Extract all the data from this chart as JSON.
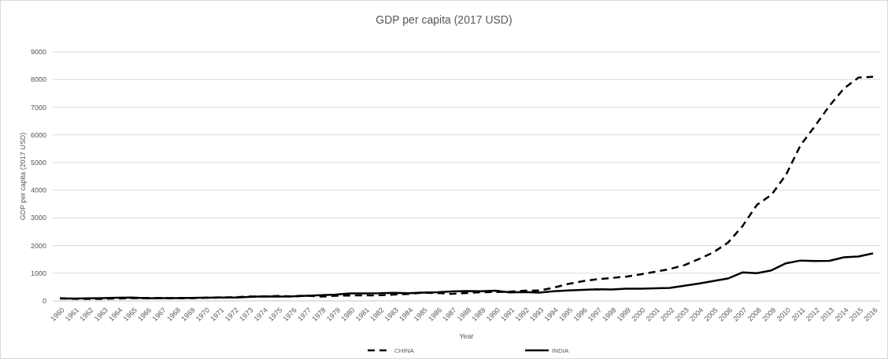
{
  "chart_data": {
    "type": "line",
    "title": "GDP per capita (2017 USD)",
    "xlabel": "Year",
    "ylabel": "GDP per capita (2017 USD)",
    "categories": [
      "1960",
      "1961",
      "1962",
      "1963",
      "1964",
      "1965",
      "1966",
      "1967",
      "1968",
      "1969",
      "1970",
      "1971",
      "1972",
      "1973",
      "1974",
      "1975",
      "1976",
      "1977",
      "1978",
      "1979",
      "1980",
      "1981",
      "1982",
      "1983",
      "1984",
      "1985",
      "1986",
      "1987",
      "1988",
      "1989",
      "1990",
      "1991",
      "1992",
      "1993",
      "1994",
      "1995",
      "1996",
      "1997",
      "1998",
      "1999",
      "2000",
      "2001",
      "2002",
      "2003",
      "2004",
      "2005",
      "2006",
      "2007",
      "2008",
      "2009",
      "2010",
      "2011",
      "2012",
      "2013",
      "2014",
      "2015",
      "2016"
    ],
    "series": [
      {
        "name": "CHINA",
        "color": "#000000",
        "line_style": "dashed",
        "values": [
          90,
          76,
          70,
          74,
          85,
          98,
          104,
          96,
          91,
          100,
          113,
          119,
          132,
          157,
          160,
          178,
          165,
          185,
          156,
          184,
          195,
          197,
          203,
          225,
          250,
          294,
          281,
          252,
          284,
          311,
          318,
          333,
          366,
          377,
          473,
          610,
          709,
          782,
          829,
          873,
          959,
          1053,
          1149,
          1289,
          1509,
          1753,
          2099,
          2694,
          3468,
          3832,
          4550,
          5618,
          6317,
          7051,
          7679,
          8067,
          8100
        ]
      },
      {
        "name": "INDIA",
        "color": "#000000",
        "line_style": "solid",
        "values": [
          82,
          85,
          90,
          101,
          116,
          119,
          90,
          96,
          99,
          107,
          112,
          119,
          122,
          143,
          163,
          158,
          161,
          186,
          206,
          224,
          267,
          271,
          275,
          291,
          277,
          296,
          310,
          340,
          354,
          346,
          368,
          303,
          317,
          301,
          346,
          374,
          400,
          416,
          413,
          442,
          443,
          452,
          471,
          546,
          627,
          714,
          807,
          1028,
          999,
          1102,
          1358,
          1458,
          1444,
          1450,
          1574,
          1606,
          1717
        ]
      }
    ],
    "ylim": [
      0,
      9000
    ],
    "yticks": [
      0,
      1000,
      2000,
      3000,
      4000,
      5000,
      6000,
      7000,
      8000,
      9000
    ],
    "grid": "y",
    "legend": "bottom",
    "marker": "none"
  }
}
